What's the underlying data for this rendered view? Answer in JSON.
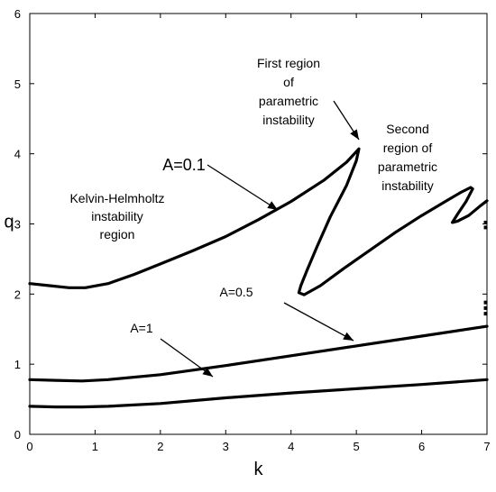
{
  "chart_data": {
    "type": "line",
    "xlabel": "k",
    "ylabel": "q",
    "xlim": [
      0,
      7
    ],
    "ylim": [
      0,
      6
    ],
    "xticks": [
      "0",
      "1",
      "2",
      "3",
      "4",
      "5",
      "6",
      "7"
    ],
    "yticks": [
      "0",
      "1",
      "2",
      "3",
      "4",
      "5",
      "6"
    ],
    "grid": false,
    "series": [
      {
        "name": "A=0.1",
        "points": [
          [
            0,
            2.15
          ],
          [
            0.3,
            2.12
          ],
          [
            0.6,
            2.09
          ],
          [
            0.85,
            2.09
          ],
          [
            1.2,
            2.15
          ],
          [
            1.6,
            2.28
          ],
          [
            2,
            2.43
          ],
          [
            2.5,
            2.62
          ],
          [
            3,
            2.82
          ],
          [
            3.5,
            3.06
          ],
          [
            4,
            3.32
          ],
          [
            4.5,
            3.62
          ],
          [
            4.85,
            3.88
          ],
          [
            5.0,
            4.03
          ],
          [
            5.04,
            4.07
          ],
          [
            5.0,
            3.9
          ],
          [
            4.85,
            3.55
          ],
          [
            4.6,
            3.1
          ],
          [
            4.4,
            2.68
          ],
          [
            4.25,
            2.35
          ],
          [
            4.15,
            2.12
          ],
          [
            4.12,
            2.02
          ],
          [
            4.2,
            1.99
          ],
          [
            4.45,
            2.12
          ],
          [
            4.8,
            2.36
          ],
          [
            5.2,
            2.62
          ],
          [
            5.6,
            2.88
          ],
          [
            6.0,
            3.12
          ],
          [
            6.4,
            3.34
          ],
          [
            6.6,
            3.45
          ],
          [
            6.75,
            3.52
          ],
          [
            6.78,
            3.5
          ],
          [
            6.68,
            3.32
          ],
          [
            6.55,
            3.14
          ],
          [
            6.47,
            3.02
          ],
          [
            6.55,
            3.04
          ],
          [
            6.72,
            3.12
          ],
          [
            6.9,
            3.26
          ],
          [
            7,
            3.33
          ]
        ]
      },
      {
        "name": "A=0.5",
        "points": [
          [
            0,
            0.78
          ],
          [
            0.4,
            0.77
          ],
          [
            0.8,
            0.76
          ],
          [
            1.2,
            0.78
          ],
          [
            2,
            0.85
          ],
          [
            3,
            0.98
          ],
          [
            4,
            1.12
          ],
          [
            5,
            1.26
          ],
          [
            6,
            1.4
          ],
          [
            7,
            1.54
          ]
        ]
      },
      {
        "name": "A=1",
        "points": [
          [
            0,
            0.4
          ],
          [
            0.4,
            0.39
          ],
          [
            0.8,
            0.39
          ],
          [
            1.2,
            0.4
          ],
          [
            2,
            0.44
          ],
          [
            3,
            0.52
          ],
          [
            4,
            0.59
          ],
          [
            5,
            0.65
          ],
          [
            6,
            0.71
          ],
          [
            7,
            0.78
          ]
        ]
      }
    ],
    "annotations": [
      {
        "id": "kh",
        "lines": [
          "Kelvin-Helmholtz",
          "instability",
          "region"
        ]
      },
      {
        "id": "first",
        "lines": [
          "First  region",
          "of",
          "parametric",
          "instability"
        ]
      },
      {
        "id": "second",
        "lines": [
          "Second",
          "region of",
          "parametric",
          "instability"
        ]
      },
      {
        "id": "a01",
        "lines": [
          "A=0.1"
        ]
      },
      {
        "id": "a05",
        "lines": [
          "A=0.5"
        ]
      },
      {
        "id": "a1",
        "lines": [
          "A=1"
        ]
      }
    ]
  }
}
